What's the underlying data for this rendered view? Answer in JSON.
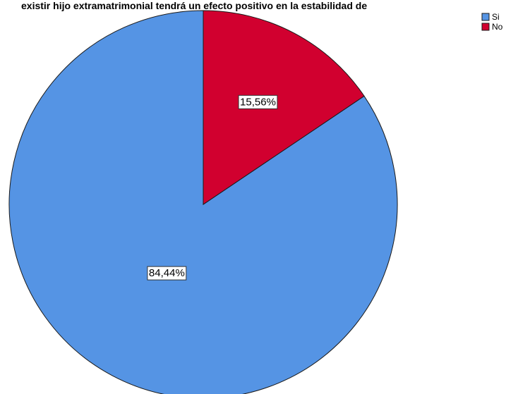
{
  "chart_data": {
    "type": "pie",
    "title": "existir hijo extramatrimonial tendrá un efecto positivo en la estabilidad de",
    "categories": [
      "Si",
      "No"
    ],
    "values": [
      84.44,
      15.56
    ],
    "data_labels": [
      "84,44%",
      "15,56%"
    ],
    "colors": [
      "#5594e4",
      "#d1002f"
    ],
    "legend": {
      "position": "top-right",
      "entries": [
        "Si",
        "No"
      ]
    }
  }
}
